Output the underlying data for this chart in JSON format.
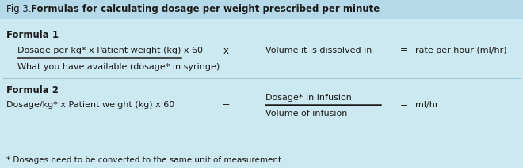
{
  "title_prefix": "Fig 3.",
  "title_bold": "Formulas for calculating dosage per weight prescribed per minute",
  "bg_color": "#cce8f0",
  "header_bg": "#b5d9e8",
  "divider_color": "#a0c8d8",
  "text_color": "#1a1a1a",
  "formula1_label": "Formula 1",
  "formula1_numerator": "Dosage per kg* x Patient weight (kg) x 60",
  "formula1_denominator": "What you have available (dosage* in syringe)",
  "formula1_operator": "x",
  "formula1_rhs": "Volume it is dissolved in",
  "formula1_equals": "=",
  "formula1_result": "rate per hour (ml/hr)",
  "formula2_label": "Formula 2",
  "formula2_left": "Dosage/kg* x Patient weight (kg) x 60",
  "formula2_operator": "÷",
  "formula2_numerator": "Dosage* in infusion",
  "formula2_denominator": "Volume of infusion",
  "formula2_equals": "=",
  "formula2_result": "ml/hr",
  "footnote": "* Dosages need to be converted to the same unit of measurement",
  "fig_width": 6.6,
  "fig_height": 2.13,
  "dpi": 100
}
